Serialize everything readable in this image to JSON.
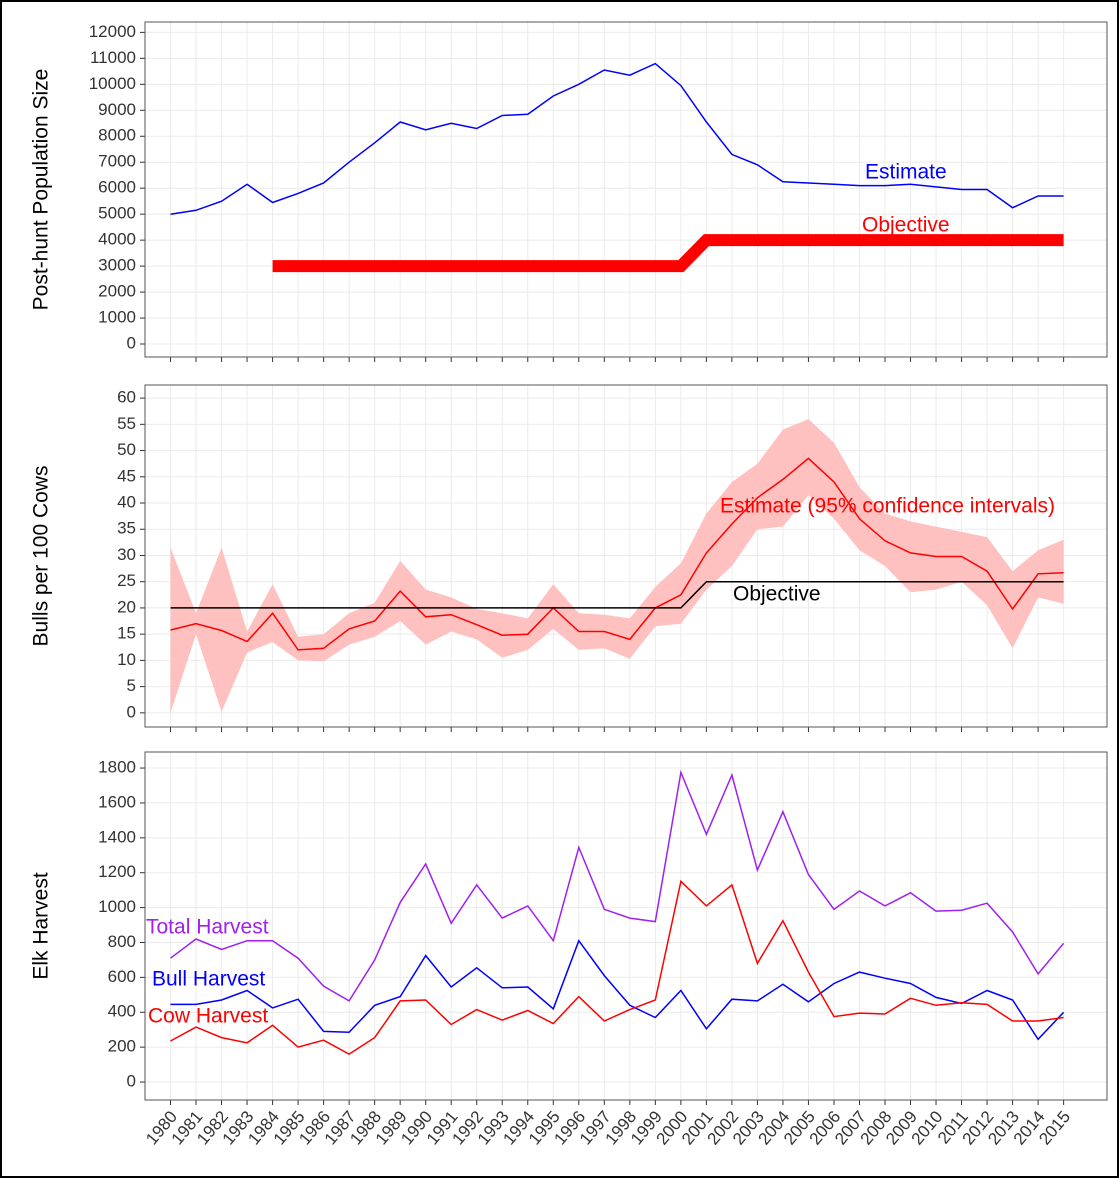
{
  "chart_data": [
    {
      "type": "line",
      "ylabel": "Post-hunt Population Size",
      "x": [
        1980,
        1981,
        1982,
        1983,
        1984,
        1985,
        1986,
        1987,
        1988,
        1989,
        1990,
        1991,
        1992,
        1993,
        1994,
        1995,
        1996,
        1997,
        1998,
        1999,
        2000,
        2001,
        2002,
        2003,
        2004,
        2005,
        2006,
        2007,
        2008,
        2009,
        2010,
        2011,
        2012,
        2013,
        2014,
        2015
      ],
      "xlim": [
        1979,
        2016.7
      ],
      "ylim": [
        -500,
        12400
      ],
      "yticks": [
        0,
        1000,
        2000,
        3000,
        4000,
        5000,
        6000,
        7000,
        8000,
        9000,
        10000,
        11000,
        12000
      ],
      "grid": true,
      "series": [
        {
          "name": "Estimate",
          "color": "#0000ff",
          "width": 1.5,
          "values": [
            5000,
            5150,
            5500,
            6150,
            5450,
            5800,
            6200,
            7000,
            7750,
            8550,
            8250,
            8500,
            8300,
            8800,
            8850,
            9550,
            10000,
            10550,
            10350,
            10800,
            9950,
            8550,
            7300,
            6900,
            6250,
            6200,
            6150,
            6100,
            6100,
            6150,
            6050,
            5950,
            5950,
            5250,
            5700,
            5700
          ]
        },
        {
          "name": "Objective",
          "color": "#ff0000",
          "width": 12,
          "values": [
            null,
            null,
            null,
            null,
            3000,
            3000,
            3000,
            3000,
            3000,
            3000,
            3000,
            3000,
            3000,
            3000,
            3000,
            3000,
            3000,
            3000,
            3000,
            3000,
            3000,
            4000,
            4000,
            4000,
            4000,
            4000,
            4000,
            4000,
            4000,
            4000,
            4000,
            4000,
            4000,
            4000,
            4000,
            4000
          ]
        }
      ]
    },
    {
      "type": "line",
      "ylabel": "Bulls per 100 Cows",
      "x": [
        1980,
        1981,
        1982,
        1983,
        1984,
        1985,
        1986,
        1987,
        1988,
        1989,
        1990,
        1991,
        1992,
        1993,
        1994,
        1995,
        1996,
        1997,
        1998,
        1999,
        2000,
        2001,
        2002,
        2003,
        2004,
        2005,
        2006,
        2007,
        2008,
        2009,
        2010,
        2011,
        2012,
        2013,
        2014,
        2015
      ],
      "xlim": [
        1979,
        2016.7
      ],
      "ylim": [
        -2.7,
        62.5
      ],
      "yticks": [
        0,
        5,
        10,
        15,
        20,
        25,
        30,
        35,
        40,
        45,
        50,
        55,
        60
      ],
      "grid": true,
      "series": [
        {
          "name": "Estimate (95% confidence intervals)",
          "color": "#ff0000",
          "band_color": "#ffc0c0",
          "width": 1.5,
          "values": [
            15.8,
            17,
            15.7,
            13.6,
            19,
            12,
            12.3,
            16,
            17.5,
            23.2,
            18.3,
            18.7,
            16.8,
            14.8,
            15,
            20,
            15.5,
            15.5,
            14,
            20,
            22.5,
            30.5,
            36,
            41,
            44.5,
            48.5,
            44,
            37,
            32.8,
            30.5,
            29.8,
            29.8,
            27,
            19.8,
            26.5,
            26.7
          ],
          "lower": [
            0,
            15,
            0.2,
            11.5,
            13.5,
            10,
            9.8,
            13,
            14.5,
            17.5,
            13,
            15.5,
            14,
            10.5,
            12,
            16,
            12,
            12.3,
            10.3,
            16.5,
            17,
            23.5,
            28,
            35,
            35.5,
            41.5,
            37,
            31,
            28,
            23,
            23.5,
            25,
            20.5,
            12.3,
            22,
            20.8
          ],
          "upper": [
            31.5,
            19,
            31.5,
            15.5,
            24.5,
            14.5,
            15,
            19,
            21,
            29,
            23.5,
            22,
            19.8,
            19,
            18,
            24.5,
            19,
            18.7,
            18,
            24,
            28.5,
            38,
            44,
            47.5,
            54,
            56,
            51.5,
            43,
            38,
            36.5,
            35.5,
            34.5,
            33.5,
            27,
            31,
            33
          ]
        },
        {
          "name": "Objective",
          "color": "#000000",
          "width": 1.5,
          "values": [
            20,
            20,
            20,
            20,
            20,
            20,
            20,
            20,
            20,
            20,
            20,
            20,
            20,
            20,
            20,
            20,
            20,
            20,
            20,
            20,
            20,
            25,
            25,
            25,
            25,
            25,
            25,
            25,
            25,
            25,
            25,
            25,
            25,
            25,
            25,
            25
          ]
        }
      ]
    },
    {
      "type": "line",
      "ylabel": "Elk Harvest",
      "x": [
        1980,
        1981,
        1982,
        1983,
        1984,
        1985,
        1986,
        1987,
        1988,
        1989,
        1990,
        1991,
        1992,
        1993,
        1994,
        1995,
        1996,
        1997,
        1998,
        1999,
        2000,
        2001,
        2002,
        2003,
        2004,
        2005,
        2006,
        2007,
        2008,
        2009,
        2010,
        2011,
        2012,
        2013,
        2014,
        2015
      ],
      "xlim": [
        1979,
        2016.7
      ],
      "ylim": [
        -103,
        1892
      ],
      "xticks": [
        1980,
        1981,
        1982,
        1983,
        1984,
        1985,
        1986,
        1987,
        1988,
        1989,
        1990,
        1991,
        1992,
        1993,
        1994,
        1995,
        1996,
        1997,
        1998,
        1999,
        2000,
        2001,
        2002,
        2003,
        2004,
        2005,
        2006,
        2007,
        2008,
        2009,
        2010,
        2011,
        2012,
        2013,
        2014,
        2015
      ],
      "yticks": [
        0,
        200,
        400,
        600,
        800,
        1000,
        1200,
        1400,
        1600,
        1800
      ],
      "grid": true,
      "series": [
        {
          "name": "Total Harvest",
          "color": "#a020f0",
          "width": 1.5,
          "values": [
            710,
            820,
            760,
            810,
            810,
            710,
            550,
            465,
            700,
            1030,
            1250,
            910,
            1130,
            940,
            1010,
            810,
            1345,
            990,
            940,
            920,
            1775,
            1420,
            1760,
            1215,
            1550,
            1190,
            990,
            1095,
            1010,
            1085,
            980,
            985,
            1025,
            860,
            620,
            795
          ]
        },
        {
          "name": "Bull Harvest",
          "color": "#0000ff",
          "width": 1.5,
          "values": [
            445,
            445,
            470,
            525,
            425,
            475,
            290,
            285,
            440,
            490,
            725,
            545,
            655,
            540,
            545,
            420,
            810,
            610,
            440,
            370,
            525,
            305,
            475,
            465,
            560,
            460,
            565,
            630,
            595,
            565,
            485,
            450,
            525,
            470,
            245,
            400
          ]
        },
        {
          "name": "Cow Harvest",
          "color": "#ff0000",
          "width": 1.5,
          "values": [
            235,
            315,
            255,
            225,
            325,
            200,
            240,
            160,
            255,
            465,
            470,
            330,
            415,
            355,
            410,
            335,
            490,
            350,
            415,
            470,
            1150,
            1010,
            1130,
            680,
            925,
            630,
            375,
            395,
            390,
            480,
            440,
            455,
            445,
            350,
            350,
            370
          ]
        }
      ]
    }
  ]
}
